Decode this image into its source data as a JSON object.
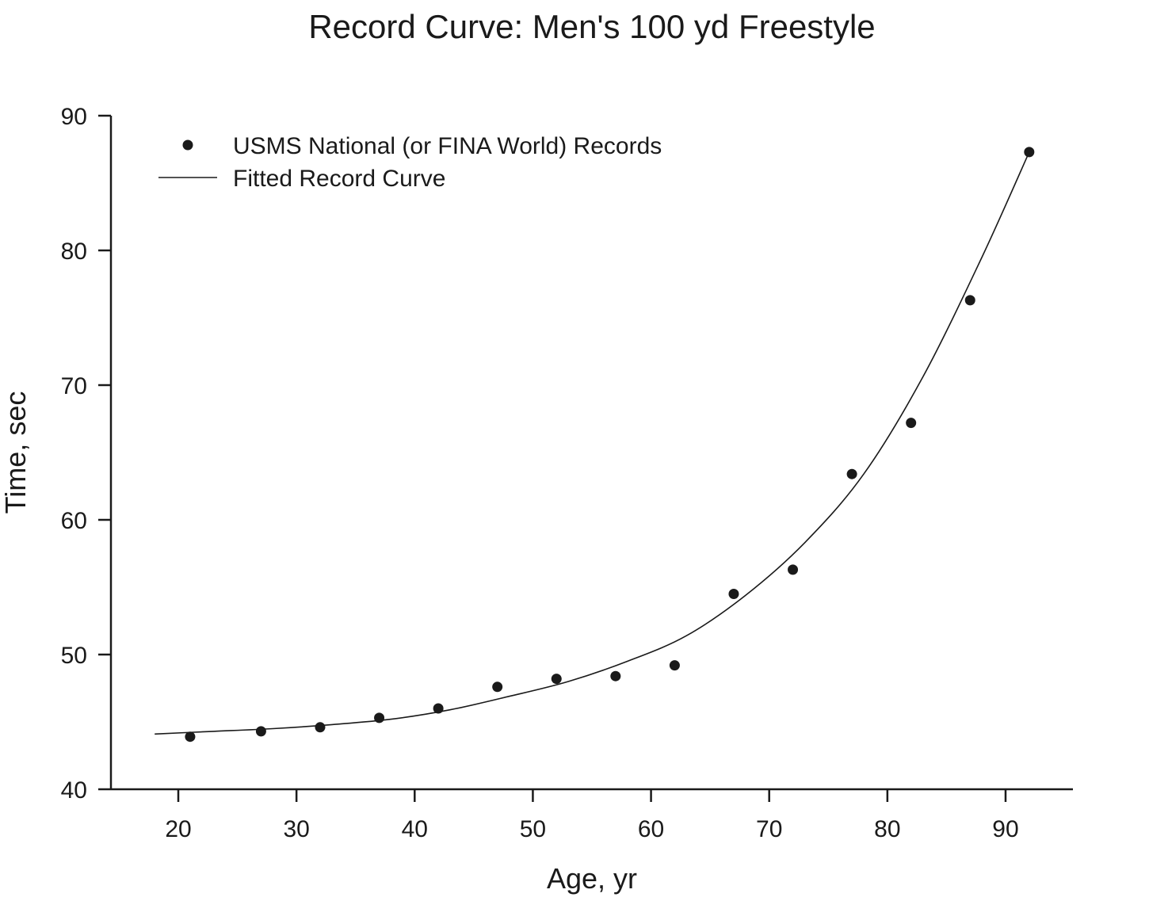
{
  "chart_data": {
    "type": "scatter",
    "title": "Record Curve: Men's 100 yd Freestyle",
    "xlabel": "Age, yr",
    "ylabel": "Time, sec",
    "xlim": [
      14.3,
      95.7
    ],
    "ylim": [
      40,
      90
    ],
    "xticks": [
      20,
      30,
      40,
      50,
      60,
      70,
      80,
      90
    ],
    "yticks": [
      40,
      50,
      60,
      70,
      80,
      90
    ],
    "grid": false,
    "legend_position": "top-left",
    "series": [
      {
        "name": "USMS National (or FINA World) Records",
        "kind": "scatter",
        "x": [
          21,
          27,
          32,
          37,
          42,
          47,
          52,
          57,
          62,
          67,
          72,
          77,
          82,
          87,
          92
        ],
        "y": [
          43.9,
          44.3,
          44.6,
          45.3,
          46.0,
          47.6,
          48.2,
          48.4,
          49.2,
          54.5,
          56.3,
          63.4,
          67.2,
          76.3,
          87.3
        ]
      },
      {
        "name": "Fitted Record Curve",
        "kind": "line",
        "x": [
          18,
          23,
          28,
          33,
          38,
          43,
          48,
          53,
          58,
          63,
          68,
          73,
          78,
          83,
          88,
          92
        ],
        "y": [
          44.1,
          44.3,
          44.5,
          44.8,
          45.2,
          45.9,
          46.9,
          48.0,
          49.5,
          51.4,
          54.4,
          58.3,
          63.4,
          70.6,
          79.5,
          87.3
        ]
      }
    ]
  }
}
